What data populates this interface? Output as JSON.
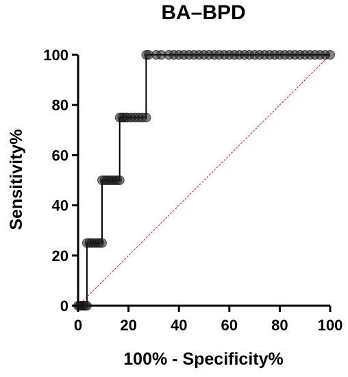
{
  "chart_data": {
    "type": "line",
    "title": "BA–BPD",
    "xlabel": "100% - Specificity%",
    "ylabel": "Sensitivity%",
    "xlim": [
      0,
      100
    ],
    "ylim": [
      0,
      100
    ],
    "x_ticks": [
      "0",
      "20",
      "40",
      "60",
      "80",
      "100"
    ],
    "y_ticks": [
      "0",
      "20",
      "40",
      "60",
      "80",
      "100"
    ],
    "grid": false,
    "legend": "none",
    "series": [
      {
        "color": "#000000",
        "marker": "circle",
        "x": [
          0,
          0.7,
          1.4,
          2.1,
          2.8,
          3.5,
          3.5,
          4.5,
          5.5,
          6.5,
          7.5,
          8.5,
          9.5,
          9.5,
          10.5,
          11.5,
          12.5,
          13.5,
          14.5,
          15.5,
          16.5,
          16.5,
          17.5,
          18.5,
          19.5,
          21,
          22.5,
          24,
          25.5,
          27,
          27,
          28,
          31,
          33,
          36,
          38,
          40,
          42,
          44,
          46,
          48,
          50,
          52,
          54,
          56,
          58,
          60,
          62,
          64,
          66,
          68,
          70,
          72,
          74,
          76,
          78,
          80,
          82,
          84,
          86,
          88,
          90,
          92,
          94,
          96,
          98,
          100
        ],
        "y": [
          0,
          0,
          0,
          0,
          0,
          0,
          25,
          25,
          25,
          25,
          25,
          25,
          25,
          50,
          50,
          50,
          50,
          50,
          50,
          50,
          50,
          75,
          75,
          75,
          75,
          75,
          75,
          75,
          75,
          75,
          100,
          100,
          100,
          100,
          100,
          100,
          100,
          100,
          100,
          100,
          100,
          100,
          100,
          100,
          100,
          100,
          100,
          100,
          100,
          100,
          100,
          100,
          100,
          100,
          100,
          100,
          100,
          100,
          100,
          100,
          100,
          100,
          100,
          100,
          100,
          100,
          100
        ]
      }
    ],
    "reference_line": {
      "x": [
        0,
        100
      ],
      "y": [
        0,
        100
      ],
      "color": "#ff0000",
      "style": "dashed"
    }
  }
}
